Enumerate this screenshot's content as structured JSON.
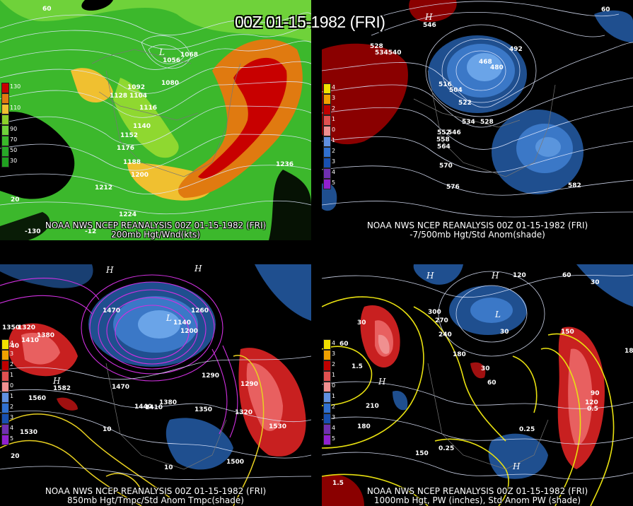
{
  "title": "00Z 01-15-1982 (FRI)",
  "panels": [
    {
      "caption_line1": "NOAA NWS NCEP REANALYSIS 00Z 01-15-1982 (FRI)",
      "caption_line2": "200mb Hgt/Wnd(kts)",
      "legend": [
        "130",
        "110",
        "90",
        "70",
        "50",
        "30"
      ],
      "legend_colors": [
        "#c80000",
        "#e07a10",
        "#f0c030",
        "#8cd02a",
        "#3ab82a",
        "#20a020"
      ],
      "contour_labels": [
        "1068",
        "1056",
        "1092",
        "1080",
        "1128",
        "1104",
        "1116",
        "1140",
        "1152",
        "1176",
        "1188",
        "1200",
        "1212",
        "1224",
        "1236"
      ],
      "edge_labels": [
        "60",
        "-130",
        "-12",
        "20"
      ]
    },
    {
      "caption_line1": "NOAA NWS NCEP REANALYSIS 00Z 01-15-1982 (FRI)",
      "caption_line2": "-7/500mb Hgt/Std Anom(shade)",
      "legend": [
        "4",
        "3",
        "2",
        "1",
        "0",
        "1",
        "2",
        "3",
        "4",
        "5"
      ],
      "legend_colors": [
        "#f0e000",
        "#f0a000",
        "#c00000",
        "#e05050",
        "#f09090",
        "#6090e0",
        "#3070d0",
        "#1850b0",
        "#7030b0",
        "#9020d0"
      ],
      "contour_labels": [
        "528",
        "534540",
        "492",
        "468",
        "480",
        "516",
        "504",
        "522",
        "534",
        "528",
        "552",
        "546",
        "558",
        "564",
        "570",
        "576",
        "582"
      ],
      "edge_labels": [
        "H",
        "546",
        "60"
      ]
    },
    {
      "caption_line1": "NOAA NWS NCEP REANALYSIS 00Z 01-15-1982 (FRI)",
      "caption_line2": "850mb Hgt/Tmpc/Std Anom Tmpc(shade)",
      "legend": [
        "4",
        "3",
        "2",
        "1",
        "0",
        "1",
        "2",
        "3",
        "4",
        "5"
      ],
      "legend_colors": [
        "#f0e000",
        "#f0a000",
        "#c00000",
        "#e05050",
        "#f09090",
        "#6090e0",
        "#3070d0",
        "#1850b0",
        "#7030b0",
        "#9020d0"
      ],
      "contour_labels": [
        "1470",
        "1350",
        "1320",
        "1380",
        "1410",
        "1440",
        "1260",
        "1290",
        "1470",
        "1440",
        "1410",
        "1380",
        "1350",
        "1320",
        "1290",
        "1530",
        "1560",
        "1500",
        "1530"
      ],
      "edge_labels": [
        "H",
        "1582",
        "1530",
        "20",
        "10"
      ]
    },
    {
      "caption_line1": "NOAA NWS NCEP REANALYSIS 00Z 01-15-1982 (FRI)",
      "caption_line2": "1000mb Hgt, PW (inches), Std Anom PW (shade)",
      "legend": [
        "4",
        "3",
        "2",
        "1",
        "0",
        "1",
        "2",
        "3",
        "4",
        "5"
      ],
      "legend_colors": [
        "#f0e000",
        "#f0a000",
        "#c00000",
        "#e05050",
        "#f09090",
        "#6090e0",
        "#3070d0",
        "#1850b0",
        "#7030b0",
        "#9020d0"
      ],
      "contour_labels": [
        "120",
        "60",
        "30",
        "300",
        "270",
        "240",
        "180",
        "210",
        "180",
        "150",
        "30",
        "60",
        "90",
        "120",
        "150",
        "180",
        "0.25",
        "0.25",
        "1.5",
        "1.5",
        "0.5"
      ],
      "edge_labels": [
        "H",
        "L",
        "1.5"
      ]
    }
  ]
}
